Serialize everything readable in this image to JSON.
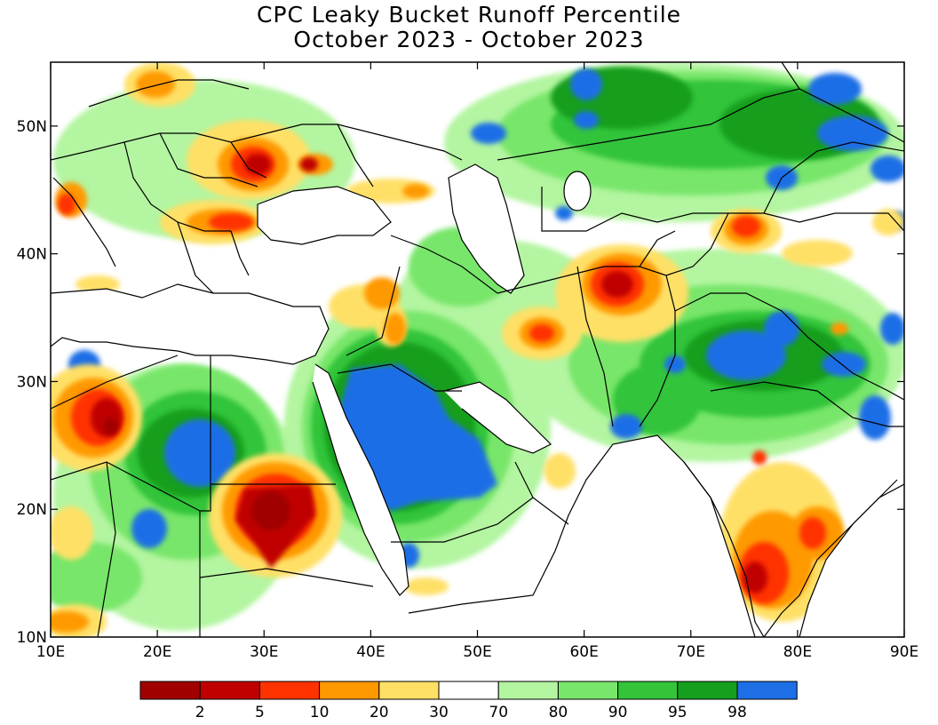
{
  "title": "CPC Leaky Bucket Runoff Percentile",
  "subtitle": "October 2023 - October 2023",
  "map": {
    "lon_range": [
      10,
      90
    ],
    "lat_range": [
      10,
      55
    ],
    "lon_ticks": [
      {
        "value": 10,
        "label": "10E"
      },
      {
        "value": 20,
        "label": "20E"
      },
      {
        "value": 30,
        "label": "30E"
      },
      {
        "value": 40,
        "label": "40E"
      },
      {
        "value": 50,
        "label": "50E"
      },
      {
        "value": 60,
        "label": "60E"
      },
      {
        "value": 70,
        "label": "70E"
      },
      {
        "value": 80,
        "label": "80E"
      },
      {
        "value": 90,
        "label": "90E"
      }
    ],
    "lat_ticks": [
      {
        "value": 10,
        "label": "10N"
      },
      {
        "value": 20,
        "label": "20N"
      },
      {
        "value": 30,
        "label": "30N"
      },
      {
        "value": 40,
        "label": "40N"
      },
      {
        "value": 50,
        "label": "50N"
      }
    ]
  },
  "legend": {
    "colors": [
      "#a00000",
      "#c00000",
      "#ff3300",
      "#ff9900",
      "#ffe066",
      "#ffffff",
      "#b3f5a0",
      "#78e66b",
      "#33c43a",
      "#169e1e",
      "#1e6ee6"
    ],
    "labels": [
      "2",
      "5",
      "10",
      "20",
      "30",
      "70",
      "80",
      "90",
      "95",
      "98"
    ]
  }
}
